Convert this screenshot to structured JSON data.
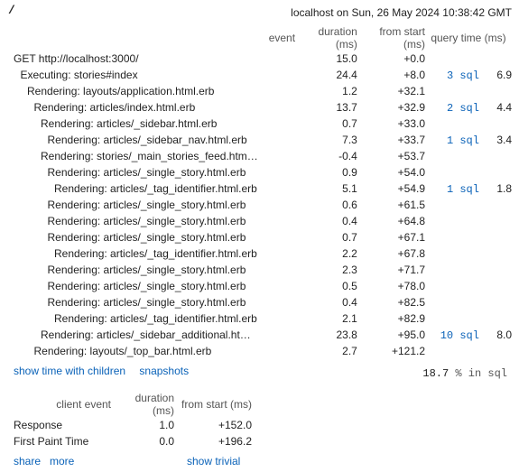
{
  "header": {
    "path": "/",
    "host_info": "localhost on Sun, 26 May 2024 10:38:42 GMT"
  },
  "columns": {
    "event": "event",
    "duration": "duration (ms)",
    "from_start": "from start (ms)",
    "query_time": "query time (ms)"
  },
  "rows": [
    {
      "label": "GET http://localhost:3000/",
      "indent": 0,
      "duration": "15.0",
      "start": "+0.0",
      "sql": "",
      "sql_time": ""
    },
    {
      "label": "Executing: stories#index",
      "indent": 1,
      "duration": "24.4",
      "start": "+8.0",
      "sql": "3 sql",
      "sql_time": "6.9"
    },
    {
      "label": "Rendering: layouts/application.html.erb",
      "indent": 2,
      "duration": "1.2",
      "start": "+32.1",
      "sql": "",
      "sql_time": ""
    },
    {
      "label": "Rendering: articles/index.html.erb",
      "indent": 3,
      "duration": "13.7",
      "start": "+32.9",
      "sql": "2 sql",
      "sql_time": "4.4"
    },
    {
      "label": "Rendering: articles/_sidebar.html.erb",
      "indent": 4,
      "duration": "0.7",
      "start": "+33.0",
      "sql": "",
      "sql_time": ""
    },
    {
      "label": "Rendering: articles/_sidebar_nav.html.erb",
      "indent": 5,
      "duration": "7.3",
      "start": "+33.7",
      "sql": "1 sql",
      "sql_time": "3.4"
    },
    {
      "label": "Rendering: stories/_main_stories_feed.htm…",
      "indent": 4,
      "duration": "-0.4",
      "start": "+53.7",
      "sql": "",
      "sql_time": ""
    },
    {
      "label": "Rendering: articles/_single_story.html.erb",
      "indent": 5,
      "duration": "0.9",
      "start": "+54.0",
      "sql": "",
      "sql_time": ""
    },
    {
      "label": "Rendering: articles/_tag_identifier.html.erb",
      "indent": 6,
      "duration": "5.1",
      "start": "+54.9",
      "sql": "1 sql",
      "sql_time": "1.8"
    },
    {
      "label": "Rendering: articles/_single_story.html.erb",
      "indent": 5,
      "duration": "0.6",
      "start": "+61.5",
      "sql": "",
      "sql_time": ""
    },
    {
      "label": "Rendering: articles/_single_story.html.erb",
      "indent": 5,
      "duration": "0.4",
      "start": "+64.8",
      "sql": "",
      "sql_time": ""
    },
    {
      "label": "Rendering: articles/_single_story.html.erb",
      "indent": 5,
      "duration": "0.7",
      "start": "+67.1",
      "sql": "",
      "sql_time": ""
    },
    {
      "label": "Rendering: articles/_tag_identifier.html.erb",
      "indent": 6,
      "duration": "2.2",
      "start": "+67.8",
      "sql": "",
      "sql_time": ""
    },
    {
      "label": "Rendering: articles/_single_story.html.erb",
      "indent": 5,
      "duration": "2.3",
      "start": "+71.7",
      "sql": "",
      "sql_time": ""
    },
    {
      "label": "Rendering: articles/_single_story.html.erb",
      "indent": 5,
      "duration": "0.5",
      "start": "+78.0",
      "sql": "",
      "sql_time": ""
    },
    {
      "label": "Rendering: articles/_single_story.html.erb",
      "indent": 5,
      "duration": "0.4",
      "start": "+82.5",
      "sql": "",
      "sql_time": ""
    },
    {
      "label": "Rendering: articles/_tag_identifier.html.erb",
      "indent": 6,
      "duration": "2.1",
      "start": "+82.9",
      "sql": "",
      "sql_time": ""
    },
    {
      "label": "Rendering: articles/_sidebar_additional.ht…",
      "indent": 4,
      "duration": "23.8",
      "start": "+95.0",
      "sql": "10 sql",
      "sql_time": "8.0"
    },
    {
      "label": "Rendering: layouts/_top_bar.html.erb",
      "indent": 3,
      "duration": "2.7",
      "start": "+121.2",
      "sql": "",
      "sql_time": ""
    }
  ],
  "links": {
    "show_time_with_children": "show time with children",
    "snapshots": "snapshots"
  },
  "sql_summary": {
    "pct": "18.7",
    "text": "% in sql"
  },
  "client": {
    "headers": {
      "event": "client event",
      "duration": "duration (ms)",
      "from_start": "from start (ms)"
    },
    "rows": [
      {
        "label": "Response",
        "duration": "1.0",
        "start": "+152.0"
      },
      {
        "label": "First Paint Time",
        "duration": "0.0",
        "start": "+196.2"
      }
    ]
  },
  "footer": {
    "share": "share",
    "more": "more",
    "show_trivial": "show trivial"
  }
}
